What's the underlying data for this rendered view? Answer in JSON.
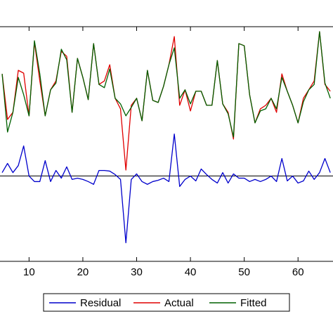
{
  "chart_data": {
    "type": "line",
    "x": [
      5,
      6,
      7,
      8,
      9,
      10,
      11,
      12,
      13,
      14,
      15,
      16,
      17,
      18,
      19,
      20,
      21,
      22,
      23,
      24,
      25,
      26,
      27,
      28,
      29,
      30,
      31,
      32,
      33,
      34,
      35,
      36,
      37,
      38,
      39,
      40,
      41,
      42,
      43,
      44,
      45,
      46,
      47,
      48,
      49,
      50,
      51,
      52,
      53,
      54,
      55,
      56,
      57,
      58,
      59,
      60,
      61,
      62,
      63,
      64,
      65,
      66
    ],
    "xlim": [
      4.6,
      66.5
    ],
    "xticks": [
      10,
      20,
      30,
      40,
      50,
      60
    ],
    "ylim": [
      -4,
      7
    ],
    "y2lim": [
      0,
      10
    ],
    "zero_line": true,
    "legend": "bottom",
    "series": [
      {
        "name": "Residual",
        "color": "#0000cc",
        "values": [
          0.16,
          0.59,
          0.16,
          0.49,
          1.41,
          0,
          -0.26,
          -0.26,
          0.72,
          -0.26,
          0.26,
          -0.1,
          0.43,
          -0.16,
          -0.1,
          -0.16,
          -0.26,
          -0.39,
          0.26,
          0.26,
          0.23,
          0.07,
          -0.16,
          -3.13,
          -0.16,
          0.1,
          -0.26,
          -0.39,
          -0.26,
          -0.2,
          -0.1,
          -0.26,
          1.97,
          -0.49,
          -0.16,
          0,
          -0.23,
          0.33,
          0.07,
          -0.16,
          -0.33,
          0.16,
          -0.33,
          0.1,
          -0.1,
          -0.1,
          -0.26,
          -0.16,
          -0.26,
          -0.16,
          0,
          -0.26,
          0.82,
          -0.23,
          0,
          -0.33,
          -0.23,
          0.23,
          -0.16,
          0.16,
          0.82,
          0.16
        ]
      },
      {
        "name": "Actual",
        "color": "#e00000",
        "axis": "y2",
        "values": [
          7.99,
          6.05,
          6.35,
          8.14,
          8.02,
          6.2,
          9.34,
          7.69,
          6.2,
          7.31,
          7.69,
          8.95,
          8.74,
          6.35,
          8.65,
          7.84,
          6.89,
          9.28,
          7.54,
          7.69,
          8.38,
          6.95,
          6.5,
          3.89,
          6.65,
          6.95,
          5.99,
          8.14,
          6.86,
          6.77,
          7.46,
          8.38,
          9.58,
          6.65,
          7.31,
          6.41,
          7.25,
          7.25,
          6.65,
          6.65,
          8.56,
          6.71,
          6.35,
          5.21,
          9.28,
          9.19,
          7.1,
          5.9,
          6.5,
          6.65,
          6.95,
          6.35,
          7.99,
          7.25,
          6.65,
          5.9,
          6.95,
          7.31,
          7.69,
          9.79,
          7.54,
          7.25
        ]
      },
      {
        "name": "Fitted",
        "color": "#006000",
        "axis": "y2",
        "values": [
          7.99,
          5.51,
          6.35,
          7.84,
          7.1,
          6.2,
          9.4,
          7.99,
          6.2,
          7.31,
          7.6,
          9.04,
          8.59,
          6.35,
          8.65,
          7.84,
          6.89,
          9.28,
          7.54,
          7.4,
          8.2,
          6.95,
          6.71,
          6.2,
          6.56,
          6.95,
          5.99,
          8.14,
          6.86,
          6.77,
          7.46,
          8.38,
          9.1,
          6.95,
          7.31,
          6.71,
          7.25,
          7.25,
          6.65,
          6.65,
          8.56,
          6.71,
          6.29,
          5.3,
          9.28,
          9.19,
          7.1,
          5.9,
          6.41,
          6.5,
          6.95,
          6.5,
          7.84,
          7.25,
          6.65,
          5.9,
          6.8,
          7.31,
          7.54,
          9.79,
          7.6,
          6.95
        ]
      }
    ]
  }
}
